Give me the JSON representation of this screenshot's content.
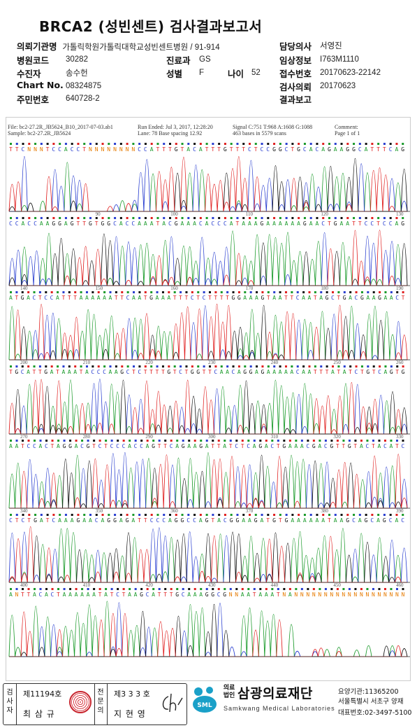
{
  "report": {
    "title": "BRCA2 (성빈센트) 검사결과보고서"
  },
  "fields": {
    "institution_label": "의뢰기관명",
    "institution_value": "가톨릭학원가톨릭대학교성빈센트병원 / 91-914",
    "hospital_code_label": "병원코드",
    "hospital_code_value": "30282",
    "department_label": "진료과",
    "department_value": "GS",
    "patient_label": "수진자",
    "patient_value": "송수헌",
    "sex_label": "성별",
    "sex_value": "F",
    "age_label": "나이",
    "age_value": "52",
    "chart_label": "Chart No.",
    "chart_value": "08324875",
    "rrn_label": "주민번호",
    "rrn_value": "640728-2",
    "doctor_label": "담당의사",
    "doctor_value": "서영진",
    "clinical_label": "임상정보",
    "clinical_value": "I763M1110",
    "receipt_label": "접수번호",
    "receipt_value": "20170623-22142",
    "request_label": "검사의뢰",
    "request_value": "20170623",
    "result_label": "결과보고"
  },
  "sequencer": {
    "file": "File: bc2-27.2R_JB5624_B10_2017-07-03.ab1",
    "sample": "Sample: bc2-27.2R_JB5624",
    "run": "Run Ended: Jul 3, 2017, 12:28:20",
    "lane": "Lane: 78   Base spacing 12.92",
    "signal": "Signal C:751 T:968 A:1608 G:1088",
    "bases": "463 bases in 5579 scans",
    "comment": "Comment:",
    "page": "Page 1 of 1",
    "rows": [
      {
        "seq": "TTCNNNTCCACCTNNNNNNNNCCATTTGTACATTTGTTTCTCCGGCTGCACAGAAGGCATTTCAG",
        "ticks": []
      },
      {
        "seq": "CCACCAAGGAGTTGTGGCACCAAATACGAAACACCCATAAAGAAAAAAGAACTGAATTCCTCCAG",
        "ticks": [
          " ",
          "90",
          "100",
          "110",
          "120",
          "130"
        ]
      },
      {
        "seq": "ATGACTCCATTTAAAAAATTCAATGAAATTTCTCTTTTGGAAAGTAATTCAATAGCTGACGAAGAACT",
        "ticks": [
          "140",
          "150",
          "160",
          "170",
          "180",
          "190"
        ]
      },
      {
        "seq": "TGCATTGATAAATACCCAAGCTCTTTTGTCTGGTTCAACAGGAGAAAAACAATTTATATCTGTCAGTG",
        "ticks": [
          "200",
          "210",
          "220",
          "230",
          "240",
          "250",
          "260"
        ]
      },
      {
        "seq": "AATCCACTAGGACGTCTCCCACCAGTTCAGAAGATTATCTCAGACTGAAACGACGTTGTACTACATC",
        "ticks": [
          "270",
          "280",
          "290",
          "300",
          "310",
          "320",
          "330"
        ]
      },
      {
        "seq": "CTCTGATCAAAGAACAGGAGATTCCCAGGCCAGTACGGAAGATGTGAAAAAATAAGCAGCAGCAC",
        "ticks": [
          "340",
          "350",
          "360",
          "370",
          "380",
          "390"
        ]
      },
      {
        "seq": "ANTTACACTAAAAAATATCTAAGCATTTGCAAAGGCGNNAATAAATNANNNNNNNNNNNNNNNNNNN",
        "ticks": [
          "400",
          "410",
          "420",
          "430",
          "440",
          "450",
          "460"
        ]
      }
    ]
  },
  "footer": {
    "examiner_label": "검사자",
    "examiner_no": "제11194호",
    "examiner_name": "최 삼 규",
    "specialist_label": "전문의",
    "specialist_no": "제3 3 3 호",
    "specialist_name": "지 현 영",
    "org_small": "의료법인",
    "org_name": "삼광의료재단",
    "org_en": "Samkwang Medical Laboratories",
    "logo_text": "SML",
    "care_code": "요양기관:11365200",
    "address": "서울특별시 서초구 양재",
    "phone": "대표번호:02-3497-5100"
  }
}
